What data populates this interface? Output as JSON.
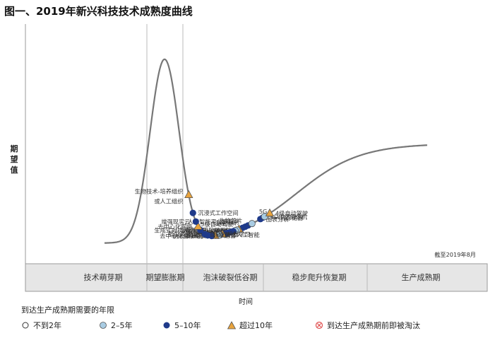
{
  "title": "图一、2019年新兴科技技术成熟度曲线",
  "chart_data": {
    "type": "scatter",
    "ylabel": "期望值",
    "xlabel": "时间",
    "date_note": "截至2019年8月",
    "phases": [
      "技术萌芽期",
      "期望膨胀期",
      "泡沫破裂低谷期",
      "稳步爬升恢复期",
      "生产成熟期"
    ],
    "legend_title": "到达生产成熟期需要的年限",
    "legend": [
      {
        "key": "lt2",
        "label": "不到2年",
        "shape": "circle",
        "color": "#ffffff"
      },
      {
        "key": "2to5",
        "label": "2–5年",
        "shape": "circle",
        "color": "#a9cce3"
      },
      {
        "key": "5to10",
        "label": "5–10年",
        "shape": "circle",
        "color": "#1f3a8a"
      },
      {
        "key": "gt10",
        "label": "超过10年",
        "shape": "triangle",
        "color": "#e8a33d"
      },
      {
        "key": "obsolete",
        "label": "到达生产成熟期前即被淘汰",
        "shape": "cross-circle",
        "color": "#e05050"
      }
    ],
    "points": [
      {
        "label": "生物芯片",
        "cat": "5to10",
        "pos": 0.445
      },
      {
        "label": "人工智能平台即服务",
        "cat": "5to10",
        "pos": 0.4365
      },
      {
        "label": "边缘分析",
        "cat": "5to10",
        "pos": 0.428
      },
      {
        "label": "5级自动驾驶",
        "cat": "gt10",
        "pos": 0.4165
      },
      {
        "label": "近地轨道卫星系统",
        "cat": "2to5",
        "pos": 0.4105
      },
      {
        "label": "边缘人工智能",
        "cat": "2to5",
        "pos": 0.405
      },
      {
        "label": "可解释的人工智能",
        "cat": "5to10",
        "pos": 0.399
      },
      {
        "label": "人格化",
        "cat": "5to10",
        "pos": 0.3935
      },
      {
        "label": "知识图谱",
        "cat": "5to10",
        "pos": 0.388
      },
      {
        "label": "合成数据",
        "cat": "5to10",
        "pos": 0.382
      },
      {
        "label": "轻型货物派送无人机",
        "cat": "5to10",
        "pos": 0.376
      },
      {
        "label": "迁移学习",
        "cat": "5to10",
        "pos": 0.3705
      },
      {
        "label": "自动飞行器",
        "cat": "gt10",
        "pos": 0.3655
      },
      {
        "label": "情感人工智能",
        "cat": "5to10",
        "pos": 0.358
      },
      {
        "label": "增强型智能",
        "cat": "2to5",
        "pos": 0.356
      },
      {
        "label": "纳米级3D打印",
        "cat": "gt10",
        "pos": 0.343
      },
      {
        "label": "去中心化自治组织",
        "cat": "5to10",
        "pos": 0.332
      },
      {
        "label": "数字运营",
        "cat": "5to10",
        "pos": 0.32
      },
      {
        "label": "自适应机器学习",
        "cat": "5to10",
        "pos": 0.311
      },
      {
        "label": "生成式对抗网络",
        "cat": "5to10",
        "pos": 0.297
      },
      {
        "label": "去中心化网络",
        "cat": "gt10",
        "pos": 0.29
      },
      {
        "label": "增强现实云",
        "cat": "5to10",
        "pos": 0.283
      },
      {
        "label": "沉浸式工作空间",
        "cat": "5to10",
        "pos": 0.274
      },
      {
        "label": "生物技术-培养组织",
        "cat": "gt10",
        "pos": 0.261
      },
      {
        "label": "或人工组织",
        "cat": "gt10",
        "pos": 0.261
      },
      {
        "label": "5G",
        "cat": "2to5",
        "pos": 0.457
      },
      {
        "label": "图表分析",
        "cat": "5to10",
        "pos": 0.483
      },
      {
        "label": "下一代存储器",
        "cat": "5to10",
        "pos": 0.4905
      },
      {
        "label": "3D传感摄像机",
        "cat": "2to5",
        "pos": 0.496
      },
      {
        "label": "4级自动驾驶",
        "cat": "gt10",
        "pos": 0.512
      }
    ]
  }
}
